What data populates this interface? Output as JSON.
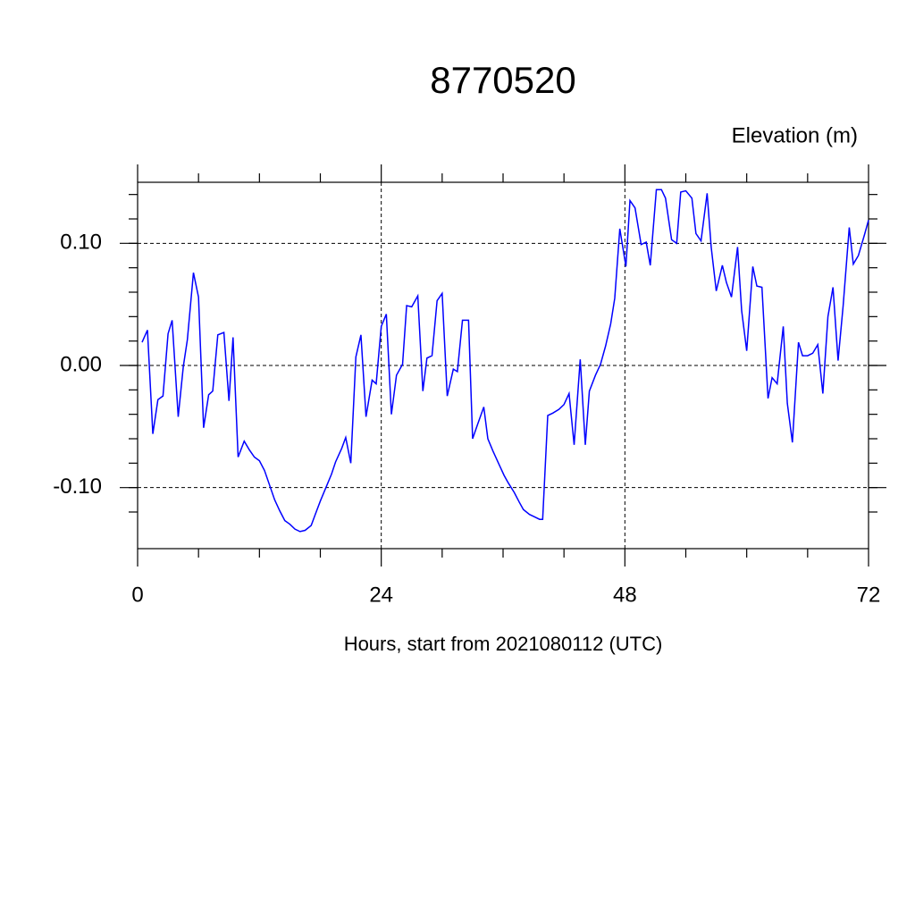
{
  "chart_data": {
    "type": "line",
    "title": "8770520",
    "ylabel": "Elevation (m)",
    "xlabel": "Hours, start from 2021080112 (UTC)",
    "xlim": [
      0,
      72
    ],
    "xticks": [
      0,
      24,
      48,
      72
    ],
    "ylim": [
      -0.15,
      0.15
    ],
    "yticks": [
      {
        "value": -0.1,
        "label": "-0.10"
      },
      {
        "value": 0,
        "label": "0.00"
      },
      {
        "value": 0.1,
        "label": "0.10"
      }
    ],
    "grid": true,
    "series": [
      {
        "color": "#0000ff",
        "x": [
          0.44,
          0.97,
          1.5,
          2.0,
          2.5,
          3.0,
          3.4,
          4.0,
          4.5,
          4.9,
          5.5,
          6.0,
          6.5,
          7.0,
          7.4,
          7.9,
          8.5,
          9.0,
          9.4,
          9.9,
          10.5,
          11.0,
          11.5,
          12.0,
          12.5,
          13.0,
          13.5,
          14.0,
          14.5,
          15.0,
          15.5,
          16.0,
          16.5,
          17.1,
          17.5,
          18.0,
          18.6,
          19.1,
          19.5,
          20.1,
          20.5,
          21.0,
          21.5,
          22.0,
          22.5,
          23.1,
          23.5,
          24.0,
          24.5,
          25.0,
          25.5,
          26.1,
          26.5,
          27.0,
          27.6,
          28.1,
          28.5,
          29.0,
          29.5,
          30.0,
          30.5,
          31.1,
          31.5,
          32.0,
          32.6,
          33.0,
          33.5,
          34.1,
          34.5,
          35.0,
          35.6,
          36.1,
          36.5,
          37.1,
          37.6,
          38.0,
          38.6,
          39.1,
          39.6,
          39.9,
          40.4,
          40.9,
          41.5,
          42.0,
          42.5,
          43.0,
          43.6,
          44.1,
          44.5,
          45.1,
          45.6,
          46.1,
          46.6,
          47.0,
          47.5,
          48.1,
          48.5,
          49.0,
          49.6,
          50.1,
          50.5,
          51.1,
          51.6,
          52.0,
          52.6,
          53.1,
          53.5,
          54.0,
          54.6,
          55.0,
          55.5,
          56.1,
          56.5,
          57.0,
          57.6,
          58.0,
          58.5,
          59.1,
          59.5,
          60.0,
          60.6,
          61.0,
          61.5,
          62.1,
          62.5,
          63.0,
          63.6,
          64.0,
          64.5,
          65.1,
          65.5,
          66.0,
          66.5,
          67.0,
          67.5,
          68.0,
          68.5,
          69.0,
          69.5,
          70.1,
          70.5,
          71.0,
          71.6,
          72.0
        ],
        "values": [
          0.019,
          0.029,
          -0.056,
          -0.028,
          -0.025,
          0.026,
          0.037,
          -0.042,
          -0.001,
          0.021,
          0.076,
          0.056,
          -0.051,
          -0.024,
          -0.021,
          0.025,
          0.027,
          -0.029,
          0.023,
          -0.075,
          -0.062,
          -0.069,
          -0.075,
          -0.078,
          -0.086,
          -0.098,
          -0.11,
          -0.119,
          -0.127,
          -0.13,
          -0.134,
          -0.136,
          -0.135,
          -0.131,
          -0.122,
          -0.111,
          -0.099,
          -0.089,
          -0.079,
          -0.068,
          -0.059,
          -0.08,
          0.007,
          0.025,
          -0.042,
          -0.012,
          -0.015,
          0.032,
          0.042,
          -0.04,
          -0.008,
          0.001,
          0.049,
          0.048,
          0.057,
          -0.021,
          0.006,
          0.008,
          0.053,
          0.059,
          -0.025,
          -0.003,
          -0.005,
          0.037,
          0.037,
          -0.06,
          -0.048,
          -0.034,
          -0.06,
          -0.07,
          -0.081,
          -0.09,
          -0.096,
          -0.104,
          -0.112,
          -0.118,
          -0.122,
          -0.124,
          -0.126,
          -0.126,
          -0.041,
          -0.039,
          -0.036,
          -0.032,
          -0.023,
          -0.065,
          0.005,
          -0.065,
          -0.021,
          -0.008,
          0.001,
          0.016,
          0.034,
          0.055,
          0.112,
          0.081,
          0.135,
          0.129,
          0.099,
          0.101,
          0.082,
          0.144,
          0.144,
          0.137,
          0.103,
          0.1,
          0.142,
          0.143,
          0.137,
          0.108,
          0.102,
          0.141,
          0.097,
          0.061,
          0.082,
          0.068,
          0.056,
          0.097,
          0.045,
          0.012,
          0.081,
          0.065,
          0.064,
          -0.027,
          -0.01,
          -0.015,
          0.032,
          -0.031,
          -0.063,
          0.019,
          0.008,
          0.008,
          0.01,
          0.017,
          -0.023,
          0.04,
          0.064,
          0.004,
          0.049,
          0.113,
          0.083,
          0.09,
          0.107,
          0.119
        ]
      }
    ]
  }
}
